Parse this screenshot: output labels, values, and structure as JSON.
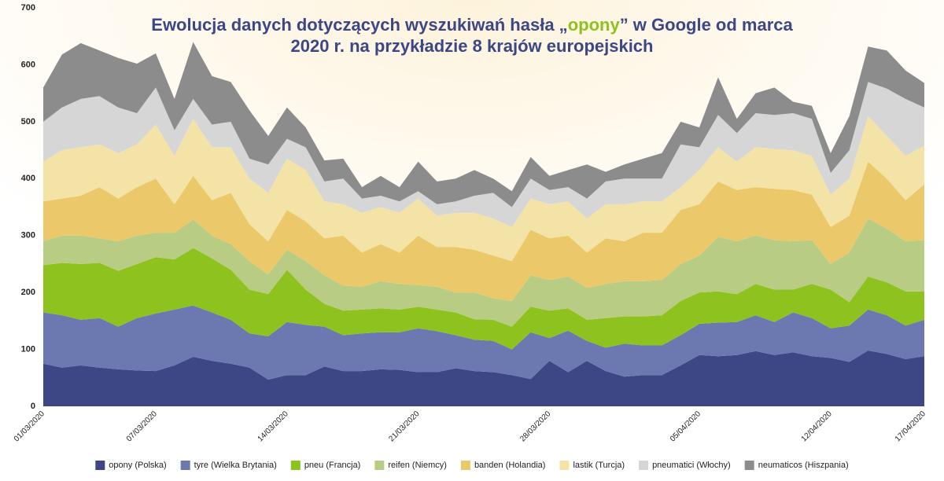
{
  "chart_data": {
    "type": "stacked_area",
    "title": [
      "Ewolucja danych dotyczących wyszukiwań hasła „",
      "opony",
      "” w Google od marca",
      "2020 r. na przykładzie 8 krajów europejskich"
    ],
    "title_highlight_color": "#8dc21f",
    "categories": [
      "01/03/2020",
      null,
      null,
      null,
      null,
      null,
      "07/03/2020",
      null,
      null,
      null,
      null,
      null,
      null,
      "14/03/2020",
      null,
      null,
      null,
      null,
      null,
      null,
      "21/03/2020",
      null,
      null,
      null,
      null,
      null,
      null,
      "28/03/2020",
      null,
      null,
      null,
      null,
      null,
      null,
      null,
      "05/04/2020",
      null,
      null,
      null,
      null,
      null,
      null,
      "12/04/2020",
      null,
      null,
      null,
      null,
      "17/04/2020"
    ],
    "ylim": [
      0,
      700
    ],
    "yticks": [
      0,
      100,
      200,
      300,
      400,
      500,
      600,
      700
    ],
    "grid": false,
    "legend": "bottom",
    "series": [
      {
        "name": "opony (Polska)",
        "color": "#3d4785",
        "values": [
          75,
          68,
          72,
          68,
          65,
          63,
          62,
          72,
          87,
          80,
          75,
          68,
          47,
          55,
          55,
          70,
          62,
          62,
          65,
          64,
          60,
          60,
          67,
          62,
          60,
          55,
          48,
          80,
          60,
          80,
          62,
          52,
          55,
          55,
          72,
          90,
          88,
          90,
          97,
          90,
          95,
          88,
          85,
          78,
          98,
          92,
          83,
          88
        ]
      },
      {
        "name": "tyre (Wielka Brytania)",
        "color": "#6b79b0",
        "values": [
          90,
          92,
          80,
          87,
          75,
          92,
          101,
          98,
          90,
          85,
          77,
          60,
          76,
          93,
          88,
          70,
          63,
          66,
          65,
          66,
          77,
          72,
          58,
          55,
          55,
          45,
          82,
          40,
          73,
          35,
          41,
          58,
          52,
          52,
          53,
          55,
          59,
          58,
          63,
          58,
          70,
          67,
          52,
          64,
          72,
          68,
          59,
          64
        ]
      },
      {
        "name": "pneu (Francja)",
        "color": "#8dc21f",
        "values": [
          83,
          92,
          98,
          97,
          98,
          95,
          99,
          88,
          101,
          95,
          88,
          77,
          74,
          92,
          62,
          40,
          43,
          42,
          42,
          40,
          38,
          38,
          40,
          36,
          37,
          40,
          45,
          48,
          39,
          37,
          52,
          48,
          51,
          53,
          60,
          55,
          55,
          49,
          55,
          57,
          40,
          60,
          68,
          41,
          58,
          58,
          60,
          50
        ]
      },
      {
        "name": "reifen (Niemcy)",
        "color": "#b9cc84",
        "values": [
          42,
          48,
          50,
          43,
          52,
          50,
          43,
          47,
          50,
          40,
          45,
          50,
          35,
          35,
          50,
          50,
          44,
          40,
          48,
          45,
          38,
          40,
          35,
          47,
          38,
          45,
          55,
          54,
          56,
          56,
          60,
          62,
          62,
          62,
          65,
          65,
          96,
          93,
          85,
          87,
          85,
          77,
          45,
          87,
          102,
          94,
          88,
          90
        ]
      },
      {
        "name": "banden (Holandia)",
        "color": "#ebc96a",
        "values": [
          70,
          65,
          70,
          90,
          75,
          85,
          95,
          50,
          77,
          62,
          90,
          65,
          58,
          70,
          70,
          65,
          88,
          60,
          65,
          55,
          87,
          70,
          80,
          75,
          75,
          70,
          80,
          73,
          72,
          62,
          80,
          70,
          85,
          83,
          95,
          90,
          97,
          90,
          85,
          90,
          90,
          80,
          65,
          65,
          100,
          88,
          72,
          98
        ]
      },
      {
        "name": "lastik (Turcja)",
        "color": "#f3e3a6",
        "values": [
          70,
          85,
          85,
          75,
          80,
          75,
          95,
          85,
          100,
          93,
          80,
          80,
          85,
          90,
          90,
          65,
          55,
          70,
          65,
          70,
          65,
          55,
          60,
          65,
          65,
          60,
          55,
          60,
          60,
          60,
          60,
          65,
          55,
          55,
          40,
          60,
          60,
          50,
          70,
          70,
          70,
          68,
          57,
          65,
          80,
          75,
          78,
          68
        ]
      },
      {
        "name": "pneumatici (Włochy)",
        "color": "#d6d6d6",
        "values": [
          70,
          75,
          85,
          85,
          80,
          55,
          65,
          45,
          35,
          40,
          45,
          35,
          50,
          35,
          40,
          35,
          45,
          25,
          20,
          20,
          13,
          20,
          20,
          30,
          45,
          35,
          35,
          25,
          25,
          35,
          40,
          45,
          40,
          40,
          75,
          40,
          57,
          50,
          60,
          60,
          65,
          65,
          38,
          50,
          60,
          83,
          100,
          67
        ]
      },
      {
        "name": "neumaticos (Hiszpania)",
        "color": "#8c8c8c",
        "values": [
          60,
          93,
          98,
          80,
          87,
          87,
          60,
          55,
          100,
          85,
          70,
          85,
          50,
          55,
          35,
          37,
          35,
          20,
          35,
          25,
          52,
          40,
          40,
          45,
          25,
          28,
          38,
          25,
          30,
          60,
          17,
          25,
          35,
          45,
          40,
          35,
          66,
          25,
          35,
          48,
          20,
          23,
          35,
          60,
          62,
          67,
          50,
          43
        ]
      }
    ]
  }
}
